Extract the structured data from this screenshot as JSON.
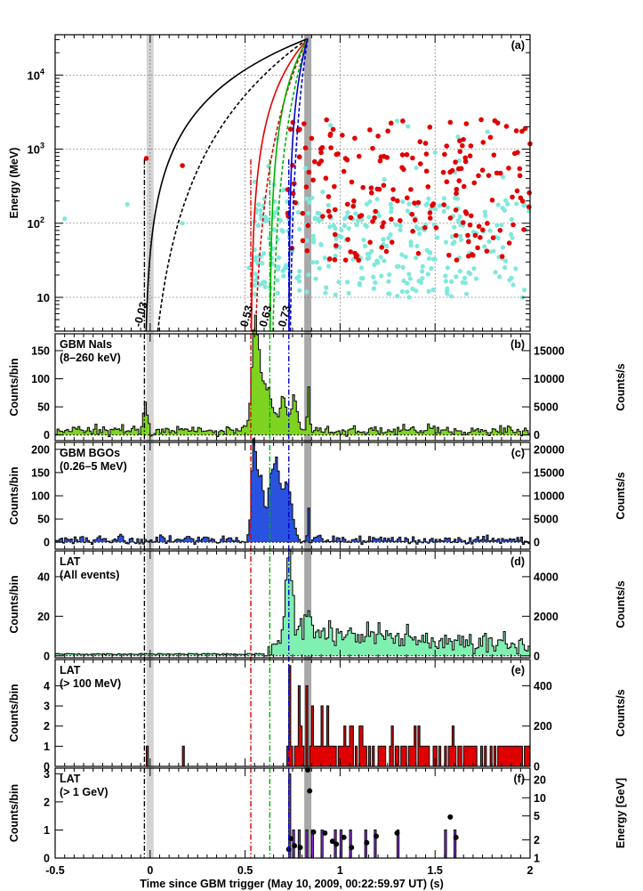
{
  "x_axis": {
    "label": "Time since GBM trigger (May 10, 2009, 00:22:59.97 UT) (s)",
    "range": [
      -0.5,
      2.0
    ],
    "ticks": [
      -0.5,
      0,
      0.5,
      1,
      1.5,
      2
    ],
    "tick_labels": [
      "-0.5",
      "0",
      "0.5",
      "1",
      "1.5",
      "2"
    ]
  },
  "markers": {
    "shaded_times": [
      0.0,
      0.83
    ],
    "lines": [
      {
        "t": -0.03,
        "label": "-0.03",
        "color": "#000000"
      },
      {
        "t": 0.53,
        "label": "0.53",
        "color": "#e00000"
      },
      {
        "t": 0.63,
        "label": "0.63",
        "color": "#00b000"
      },
      {
        "t": 0.73,
        "label": "0.73",
        "color": "#0000cc"
      }
    ]
  },
  "chart_data": [
    {
      "panel": "a",
      "panel_label": "(a)",
      "type": "scatter",
      "ylabel": "Energy (MeV)",
      "yscale": "log",
      "ylim": [
        3.5,
        35000
      ],
      "y_tick_labels": [
        "10",
        "10^2",
        "10^3",
        "10^4"
      ],
      "grid": true,
      "colors": {
        "low_energy_events": "#7fe8dc",
        "high_energy_events": "#e00000"
      },
      "curves": [
        {
          "t0": -0.03,
          "color": "#000000",
          "style": "solid"
        },
        {
          "t0": -0.03,
          "color": "#000000",
          "style": "dashed"
        },
        {
          "t0": 0.53,
          "color": "#e00000",
          "style": "solid"
        },
        {
          "t0": 0.53,
          "color": "#e00000",
          "style": "dashed"
        },
        {
          "t0": 0.63,
          "color": "#00b000",
          "style": "solid"
        },
        {
          "t0": 0.63,
          "color": "#00b000",
          "style": "dashed"
        },
        {
          "t0": 0.73,
          "color": "#0000cc",
          "style": "solid"
        },
        {
          "t0": 0.73,
          "color": "#0000cc",
          "style": "dashed"
        }
      ],
      "converge_point": {
        "t": 0.83,
        "energy": 31000
      },
      "high_energy_events_sample": [
        [
          -0.02,
          750
        ],
        [
          0.17,
          600
        ],
        [
          0.78,
          1800
        ],
        [
          0.81,
          2200
        ],
        [
          0.85,
          1400
        ],
        [
          0.9,
          900
        ],
        [
          0.95,
          1600
        ],
        [
          1.02,
          500
        ],
        [
          1.1,
          800
        ],
        [
          1.2,
          1500
        ],
        [
          1.33,
          2400
        ],
        [
          1.45,
          1200
        ],
        [
          1.55,
          850
        ],
        [
          1.58,
          2300
        ],
        [
          1.75,
          520
        ],
        [
          1.95,
          220
        ]
      ],
      "low_energy_events_sample": [
        [
          -0.45,
          115
        ],
        [
          -0.12,
          180
        ],
        [
          0.17,
          100
        ],
        [
          0.52,
          25
        ],
        [
          0.78,
          140
        ],
        [
          0.95,
          2100
        ],
        [
          1.3,
          2400
        ],
        [
          1.5,
          900
        ],
        [
          1.96,
          10
        ]
      ]
    },
    {
      "panel": "b",
      "panel_label": "(b)",
      "type": "bar",
      "title": "GBM NaIs",
      "subtitle": "(8–260 keV)",
      "ylabel": "Counts/bin",
      "ylabel_right": "Counts/s",
      "ylim": [
        -10,
        180
      ],
      "y_ticks": [
        0,
        50,
        100,
        150
      ],
      "right_ticks": [
        0,
        5000,
        10000,
        15000
      ],
      "right_scale": 100,
      "fill": "#7ed321",
      "background_level": 8,
      "pulses": [
        {
          "t": -0.025,
          "width": 0.012,
          "amp": 45
        },
        {
          "t": 0.55,
          "width": 0.015,
          "amp": 150
        },
        {
          "t": 0.58,
          "width": 0.025,
          "amp": 100
        },
        {
          "t": 0.63,
          "width": 0.02,
          "amp": 50
        },
        {
          "t": 0.7,
          "width": 0.02,
          "amp": 55
        },
        {
          "t": 0.76,
          "width": 0.015,
          "amp": 60
        },
        {
          "t": 0.835,
          "width": 0.006,
          "amp": 85
        }
      ]
    },
    {
      "panel": "c",
      "panel_label": "(c)",
      "type": "bar",
      "title": "GBM BGOs",
      "subtitle": "(0.26–5 MeV)",
      "ylabel": "Counts/bin",
      "ylabel_right": "Counts/s",
      "ylim": [
        -15,
        215
      ],
      "y_ticks": [
        0,
        50,
        100,
        150,
        200
      ],
      "right_ticks": [
        0,
        5000,
        10000,
        15000,
        20000
      ],
      "right_scale": 100,
      "fill": "#2952e0",
      "background_level": 5,
      "pulses": [
        {
          "t": 0.545,
          "width": 0.012,
          "amp": 185
        },
        {
          "t": 0.58,
          "width": 0.02,
          "amp": 140
        },
        {
          "t": 0.63,
          "width": 0.01,
          "amp": 70
        },
        {
          "t": 0.66,
          "width": 0.02,
          "amp": 175
        },
        {
          "t": 0.72,
          "width": 0.025,
          "amp": 120
        },
        {
          "t": 0.835,
          "width": 0.004,
          "amp": 60
        }
      ]
    },
    {
      "panel": "d",
      "panel_label": "(d)",
      "type": "bar",
      "title": "LAT",
      "subtitle": "(All events)",
      "ylabel": "Counts/bin",
      "ylabel_right": "Counts/s",
      "ylim": [
        -1,
        53
      ],
      "y_ticks": [
        0,
        20,
        40
      ],
      "right_ticks": [
        0,
        2000,
        4000
      ],
      "right_scale": 100,
      "fill": "#80f0b0",
      "background_level": 0.6,
      "onset": 0.6,
      "peak": {
        "t": 0.73,
        "amp": 42
      },
      "tail_level": 14,
      "tail_end_level": 5
    },
    {
      "panel": "e",
      "panel_label": "(e)",
      "type": "bar",
      "title": "LAT",
      "subtitle": "(> 100 MeV)",
      "ylabel": "Counts/bin",
      "ylabel_right": "Counts/s",
      "ylim": [
        0,
        5.3
      ],
      "y_ticks": [
        0,
        1,
        2,
        3,
        4
      ],
      "right_ticks": [
        0,
        200,
        400
      ],
      "right_scale": 100,
      "fill": "#e00000",
      "early_bins": [
        [
          -0.02,
          1
        ],
        [
          0.17,
          1
        ]
      ],
      "peak_bins": [
        [
          0.73,
          5
        ],
        [
          0.78,
          4
        ],
        [
          0.82,
          4
        ],
        [
          0.85,
          3
        ],
        [
          0.9,
          3
        ],
        [
          0.93,
          3
        ],
        [
          1.02,
          2
        ],
        [
          1.1,
          2
        ]
      ]
    },
    {
      "panel": "f",
      "panel_label": "(f)",
      "type": "bar",
      "title": "LAT",
      "subtitle": "(> 1 GeV)",
      "ylabel": "Counts/bin",
      "ylabel_right": "Energy [GeV]",
      "ylim": [
        0,
        3.2
      ],
      "y_ticks": [
        0,
        1,
        2,
        3
      ],
      "right_ticks": [
        1,
        2,
        5,
        10,
        20
      ],
      "right_tick_labels": [
        "1",
        "2",
        "5",
        "10",
        "20"
      ],
      "right_log_range": [
        1,
        31
      ],
      "fill": "#9b30ff",
      "bins": [
        [
          0.73,
          3
        ],
        [
          0.75,
          1
        ],
        [
          0.78,
          1
        ],
        [
          0.82,
          1
        ],
        [
          0.85,
          1
        ],
        [
          0.9,
          1
        ],
        [
          0.97,
          1
        ],
        [
          1.0,
          1
        ],
        [
          1.05,
          1
        ],
        [
          1.13,
          1
        ],
        [
          1.18,
          1
        ],
        [
          1.3,
          1
        ],
        [
          1.55,
          1
        ],
        [
          1.6,
          1
        ]
      ],
      "photons": [
        [
          0.73,
          1.4
        ],
        [
          0.74,
          2.1
        ],
        [
          0.76,
          1.6
        ],
        [
          0.79,
          1.5
        ],
        [
          0.83,
          29
        ],
        [
          0.84,
          13
        ],
        [
          0.86,
          2.7
        ],
        [
          0.92,
          2.6
        ],
        [
          0.96,
          1.9
        ],
        [
          0.98,
          1.7
        ],
        [
          1.02,
          2.2
        ],
        [
          1.06,
          1.5
        ],
        [
          1.14,
          1.8
        ],
        [
          1.19,
          2.3
        ],
        [
          1.3,
          2.6
        ],
        [
          1.58,
          4.8
        ],
        [
          1.61,
          2.2
        ]
      ]
    }
  ]
}
